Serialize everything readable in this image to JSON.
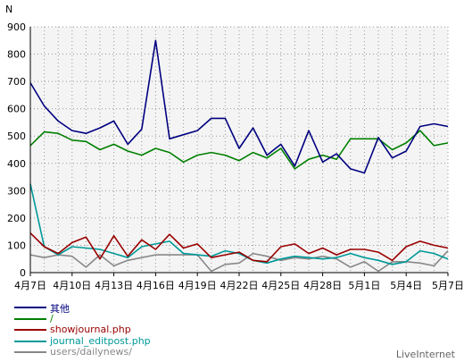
{
  "chart_data": {
    "type": "line",
    "ylabel": "N",
    "ylim": [
      0,
      900
    ],
    "yticks": [
      "0",
      "100",
      "200",
      "300",
      "400",
      "500",
      "600",
      "700",
      "800",
      "900"
    ],
    "xtick_labels": [
      "4月7日",
      "4月10日",
      "4月13日",
      "4月16日",
      "4月19日",
      "4月22日",
      "4月25日",
      "4月28日",
      "5月1日",
      "5月4日",
      "5月7日"
    ],
    "grid": true,
    "legend_position": "bottom-left",
    "categories": [
      "4/7",
      "4/8",
      "4/9",
      "4/10",
      "4/11",
      "4/12",
      "4/13",
      "4/14",
      "4/15",
      "4/16",
      "4/17",
      "4/18",
      "4/19",
      "4/20",
      "4/21",
      "4/22",
      "4/23",
      "4/24",
      "4/25",
      "4/26",
      "4/27",
      "4/28",
      "4/29",
      "4/30",
      "5/1",
      "5/2",
      "5/3",
      "5/4",
      "5/5",
      "5/6",
      "5/7"
    ],
    "series": [
      {
        "name": "其他",
        "color": "#000080",
        "values": [
          695,
          610,
          555,
          520,
          510,
          530,
          555,
          470,
          525,
          850,
          490,
          505,
          520,
          565,
          565,
          455,
          530,
          430,
          470,
          390,
          520,
          405,
          435,
          380,
          365,
          495,
          420,
          445,
          535,
          545,
          535
        ]
      },
      {
        "name": "/",
        "color": "#008000",
        "values": [
          465,
          515,
          510,
          485,
          480,
          450,
          470,
          445,
          430,
          455,
          440,
          405,
          430,
          440,
          430,
          410,
          440,
          420,
          455,
          380,
          415,
          430,
          415,
          490,
          490,
          490,
          450,
          475,
          520,
          465,
          475
        ]
      },
      {
        "name": "showjournal.php",
        "color": "#990000",
        "values": [
          145,
          95,
          70,
          110,
          130,
          50,
          135,
          60,
          120,
          85,
          140,
          90,
          105,
          55,
          65,
          75,
          45,
          40,
          95,
          105,
          70,
          90,
          65,
          85,
          85,
          75,
          45,
          95,
          115,
          100,
          90
        ]
      },
      {
        "name": "journal_editpost.php",
        "color": "#009999",
        "values": [
          325,
          95,
          65,
          95,
          90,
          85,
          70,
          55,
          95,
          105,
          115,
          70,
          65,
          60,
          80,
          70,
          45,
          35,
          50,
          60,
          55,
          50,
          55,
          70,
          55,
          45,
          30,
          40,
          80,
          70,
          50
        ]
      },
      {
        "name": "users/dailynews/",
        "color": "#888888",
        "values": [
          65,
          55,
          65,
          60,
          20,
          65,
          25,
          45,
          55,
          65,
          65,
          65,
          65,
          5,
          30,
          35,
          70,
          60,
          45,
          55,
          50,
          60,
          50,
          20,
          40,
          5,
          40,
          40,
          35,
          25,
          80
        ]
      }
    ]
  },
  "branding": "LiveInternet"
}
